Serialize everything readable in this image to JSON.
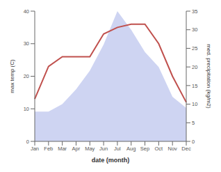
{
  "chart_data": {
    "type": "line",
    "xlabel": "date (month)",
    "ylabel": "max temp (C)",
    "y2label": "med. precipitation (kg/m2)",
    "categories": [
      "Jan",
      "Feb",
      "Mar",
      "Apr",
      "May",
      "Jun",
      "Jul",
      "Aug",
      "Sep",
      "Oct",
      "Nov",
      "Dec"
    ],
    "series": [
      {
        "type": "area",
        "color": "#c5cdf0",
        "axis": "y2",
        "values": [
          8,
          8,
          10,
          14,
          19,
          26,
          35,
          30,
          24,
          20,
          12,
          9
        ]
      },
      {
        "type": "line",
        "color": "#c0504d",
        "values": [
          13,
          23,
          26,
          26,
          26,
          33,
          35,
          36,
          36,
          30,
          20,
          12
        ]
      }
    ],
    "ylim": [
      0,
      40
    ],
    "yticks": [
      0,
      10,
      20,
      30,
      40
    ],
    "y2lim": [
      0,
      35
    ],
    "y2ticks": [
      0,
      5,
      10,
      15,
      20,
      25,
      30,
      35
    ],
    "grid": false
  }
}
